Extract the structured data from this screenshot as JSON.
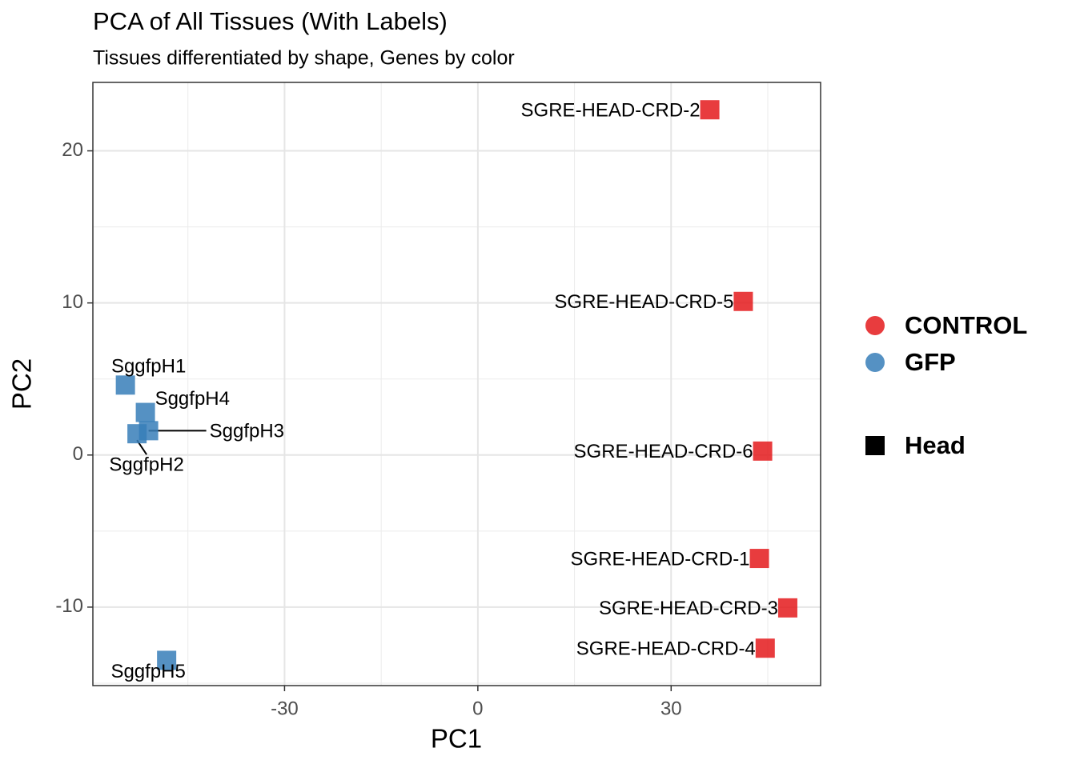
{
  "chart_data": {
    "type": "scatter",
    "title": "PCA of All Tissues (With Labels)",
    "subtitle": "Tissues differentiated by shape, Genes by color",
    "x_label": "PC1",
    "y_label": "PC2",
    "xlim": [
      -59.75,
      53.2
    ],
    "ylim": [
      -15.16,
      24.5
    ],
    "xticks": [
      -30,
      0,
      30
    ],
    "yticks": [
      -10,
      0,
      10,
      20
    ],
    "grid": true,
    "legend": "right",
    "marker": "square",
    "shape_legend": "Head",
    "series": [
      {
        "name": "CONTROL",
        "color": "#E41A1C",
        "labels": [
          "SGRE-HEAD-CRD-2",
          "SGRE-HEAD-CRD-5",
          "SGRE-HEAD-CRD-6",
          "SGRE-HEAD-CRD-1",
          "SGRE-HEAD-CRD-3",
          "SGRE-HEAD-CRD-4"
        ],
        "x": [
          36.0,
          41.2,
          44.2,
          43.7,
          48.1,
          44.6
        ],
        "values": [
          22.7,
          10.1,
          0.26,
          -6.8,
          -10.05,
          -12.7
        ]
      },
      {
        "name": "GFP",
        "color": "#377EB8",
        "labels": [
          "SggfpH1",
          "SggfpH4",
          "SggfpH3",
          "SggfpH2",
          "SggfpH5"
        ],
        "x": [
          -54.7,
          -51.6,
          -51.1,
          -52.9,
          -48.3
        ],
        "values": [
          4.6,
          2.8,
          1.6,
          1.4,
          -13.5
        ]
      }
    ]
  }
}
